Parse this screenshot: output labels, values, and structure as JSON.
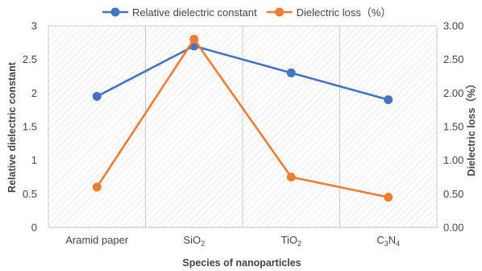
{
  "chart_data": {
    "type": "line",
    "categories": [
      "Aramid paper",
      "SiO2",
      "TiO2",
      "C3N4"
    ],
    "category_labels": [
      {
        "base": "Aramid paper",
        "sub": ""
      },
      {
        "base": "SiO",
        "sub": "2"
      },
      {
        "base": "TiO",
        "sub": "2"
      },
      {
        "parts": [
          {
            "t": "C",
            "s": false
          },
          {
            "t": "3",
            "s": true
          },
          {
            "t": "N",
            "s": false
          },
          {
            "t": "4",
            "s": true
          }
        ]
      }
    ],
    "series": [
      {
        "name": "Relative dielectric constant",
        "axis": "left",
        "color": "#4472C4",
        "values": [
          1.95,
          2.7,
          2.3,
          1.9
        ]
      },
      {
        "name": "Dielectric loss（%）",
        "axis": "right",
        "color": "#ED7D31",
        "values": [
          0.6,
          2.8,
          0.75,
          0.45
        ]
      }
    ],
    "xlabel": "Species of nanoparticles",
    "ylabel": "Relative dielectric constant",
    "y2label": "Dielectric loss（%）",
    "ylim": [
      0,
      3
    ],
    "y2lim": [
      0,
      3
    ],
    "y_ticks": [
      "0",
      "0.5",
      "1",
      "1.5",
      "2",
      "2.5",
      "3"
    ],
    "y2_ticks": [
      "0.00",
      "0.50",
      "1.00",
      "1.50",
      "2.00",
      "2.50",
      "3.00"
    ],
    "legend_position": "top",
    "grid": "vertical lines with hatched background"
  }
}
